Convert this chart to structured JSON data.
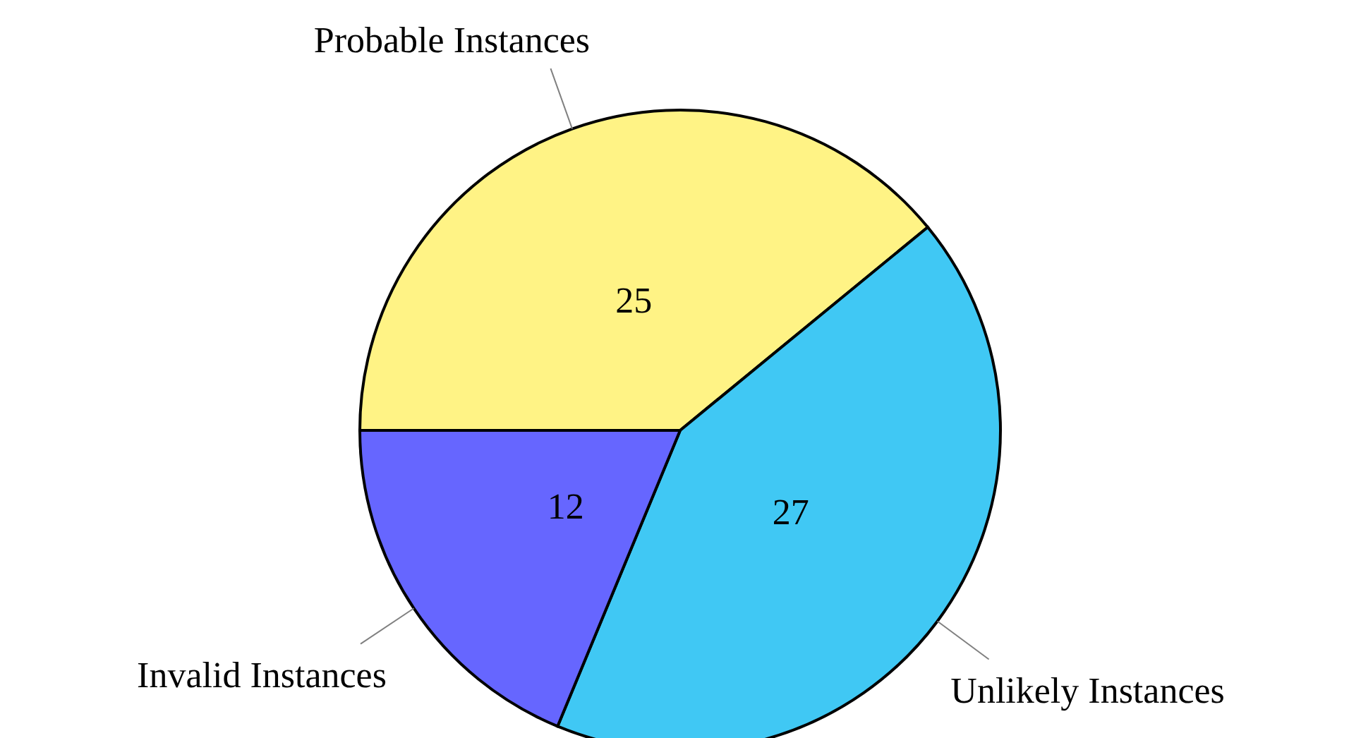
{
  "chart_data": {
    "type": "pie",
    "categories": [
      "Probable Instances",
      "Unlikely Instances",
      "Invalid Instances"
    ],
    "values": [
      25,
      27,
      12
    ],
    "colors": [
      "#fff385",
      "#40c8f4",
      "#6666ff"
    ],
    "data_labels": true
  }
}
